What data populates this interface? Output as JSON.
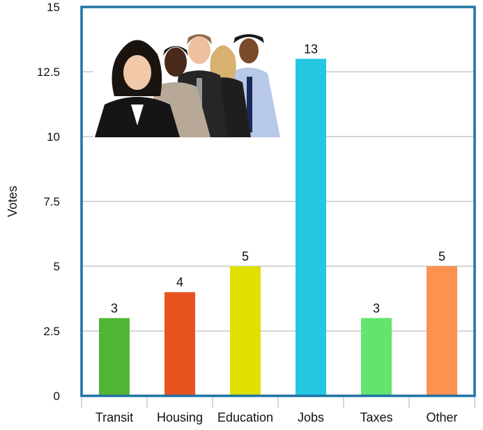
{
  "chart_data": {
    "type": "bar",
    "ylabel": "Votes",
    "xlabel": "",
    "ylim": [
      0,
      15
    ],
    "yticks": [
      {
        "value": 0,
        "label": "0"
      },
      {
        "value": 2.5,
        "label": "2.5"
      },
      {
        "value": 5,
        "label": "5"
      },
      {
        "value": 7.5,
        "label": "7.5"
      },
      {
        "value": 10,
        "label": "10"
      },
      {
        "value": 12.5,
        "label": "12.5"
      },
      {
        "value": 15,
        "label": "15"
      }
    ],
    "grid": true,
    "categories": [
      "Transit",
      "Housing",
      "Education",
      "Jobs",
      "Taxes",
      "Other"
    ],
    "values": [
      3,
      4,
      5,
      13,
      3,
      5
    ],
    "data_labels": [
      "3",
      "4",
      "5",
      "13",
      "3",
      "5"
    ],
    "colors": [
      "#52b635",
      "#e8541f",
      "#dfe000",
      "#23c7e2",
      "#63e46f",
      "#fd9150"
    ],
    "frame_color": "#1f73a3",
    "grid_color": "#c8c8c8",
    "inset_image": "group-photo-icon"
  }
}
